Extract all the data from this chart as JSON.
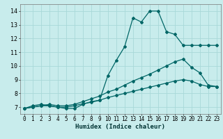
{
  "title": "",
  "xlabel": "Humidex (Indice chaleur)",
  "bg_color": "#c8ecec",
  "grid_color": "#a8d8d8",
  "line_color": "#006666",
  "xlim": [
    -0.5,
    23.5
  ],
  "ylim": [
    6.5,
    14.5
  ],
  "xticks": [
    0,
    1,
    2,
    3,
    4,
    5,
    6,
    7,
    8,
    9,
    10,
    11,
    12,
    13,
    14,
    15,
    16,
    17,
    18,
    19,
    20,
    21,
    22,
    23
  ],
  "yticks": [
    7,
    8,
    9,
    10,
    11,
    12,
    13,
    14
  ],
  "line1_x": [
    0,
    1,
    2,
    3,
    4,
    5,
    6,
    7,
    8,
    9,
    10,
    11,
    12,
    13,
    14,
    15,
    16,
    17,
    18,
    19,
    20,
    21,
    22,
    23
  ],
  "line1_y": [
    6.9,
    7.1,
    7.2,
    7.1,
    7.0,
    6.9,
    6.9,
    7.2,
    7.4,
    7.5,
    9.3,
    10.4,
    11.4,
    13.5,
    13.2,
    14.0,
    14.0,
    12.5,
    12.3,
    11.5,
    11.5,
    11.5,
    11.5,
    11.5
  ],
  "line2_x": [
    0,
    1,
    2,
    3,
    4,
    5,
    6,
    7,
    8,
    9,
    10,
    11,
    12,
    13,
    14,
    15,
    16,
    17,
    18,
    19,
    20,
    21,
    22,
    23
  ],
  "line2_y": [
    6.9,
    7.0,
    7.1,
    7.2,
    7.1,
    7.1,
    7.2,
    7.4,
    7.6,
    7.8,
    8.1,
    8.3,
    8.6,
    8.9,
    9.15,
    9.4,
    9.7,
    10.0,
    10.3,
    10.5,
    9.9,
    9.5,
    8.6,
    8.5
  ],
  "line3_x": [
    0,
    1,
    2,
    3,
    4,
    5,
    6,
    7,
    8,
    9,
    10,
    11,
    12,
    13,
    14,
    15,
    16,
    17,
    18,
    19,
    20,
    21,
    22,
    23
  ],
  "line3_y": [
    6.9,
    7.0,
    7.1,
    7.1,
    7.0,
    7.0,
    7.1,
    7.25,
    7.35,
    7.5,
    7.7,
    7.85,
    8.0,
    8.15,
    8.3,
    8.45,
    8.6,
    8.75,
    8.9,
    9.0,
    8.9,
    8.65,
    8.5,
    8.5
  ]
}
